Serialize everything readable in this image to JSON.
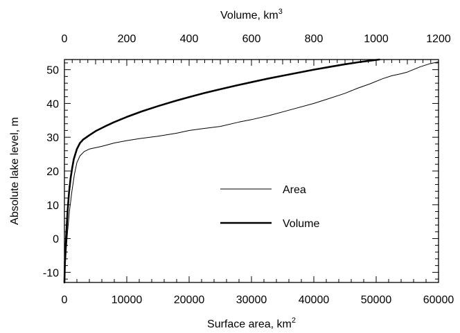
{
  "chart_data": {
    "type": "line",
    "xlabel": "Surface area, km",
    "xlabel_sup": "2",
    "x2label": "Volume, km",
    "x2label_sup": "3",
    "ylabel": "Absolute lake level, m",
    "xlim": [
      0,
      60000
    ],
    "x2lim": [
      0,
      1200
    ],
    "ylim": [
      -13,
      53
    ],
    "xticks": [
      0,
      10000,
      20000,
      30000,
      40000,
      50000,
      60000
    ],
    "xtick_labels": [
      "0",
      "10000",
      "20000",
      "30000",
      "40000",
      "50000",
      "60000"
    ],
    "x2ticks": [
      0,
      200,
      400,
      600,
      800,
      1000,
      1200
    ],
    "x2tick_labels": [
      "0",
      "200",
      "400",
      "600",
      "800",
      "1000",
      "1200"
    ],
    "yticks": [
      -10,
      0,
      10,
      20,
      30,
      40,
      50
    ],
    "ytick_labels": [
      "-10",
      "0",
      "10",
      "20",
      "30",
      "40",
      "50"
    ],
    "grid": false,
    "legend_position": "center",
    "series": [
      {
        "name": "Area",
        "axis": "bottom",
        "line_weight": "thin",
        "color": "#000000",
        "points": [
          [
            0,
            -13
          ],
          [
            150,
            -8
          ],
          [
            300,
            -3
          ],
          [
            500,
            2
          ],
          [
            800,
            8
          ],
          [
            1200,
            14
          ],
          [
            1600,
            19
          ],
          [
            2000,
            22.5
          ],
          [
            2500,
            24.5
          ],
          [
            3200,
            25.8
          ],
          [
            4000,
            26.5
          ],
          [
            6000,
            27.3
          ],
          [
            8000,
            28.3
          ],
          [
            10000,
            29
          ],
          [
            12000,
            29.6
          ],
          [
            15000,
            30.3
          ],
          [
            18000,
            31.2
          ],
          [
            20000,
            32
          ],
          [
            22000,
            32.5
          ],
          [
            25000,
            33.2
          ],
          [
            28000,
            34.5
          ],
          [
            30000,
            35.2
          ],
          [
            33000,
            36.5
          ],
          [
            36000,
            38
          ],
          [
            40000,
            40
          ],
          [
            42000,
            41.2
          ],
          [
            45000,
            43
          ],
          [
            47000,
            44.5
          ],
          [
            49000,
            45.8
          ],
          [
            51000,
            47.3
          ],
          [
            52500,
            48.2
          ],
          [
            54000,
            48.8
          ],
          [
            55000,
            49.3
          ],
          [
            57000,
            50.8
          ],
          [
            58500,
            51.7
          ],
          [
            60000,
            52.3
          ]
        ]
      },
      {
        "name": "Volume",
        "axis": "top",
        "line_weight": "thick",
        "color": "#000000",
        "points": [
          [
            0,
            -13
          ],
          [
            2,
            -5
          ],
          [
            5,
            0
          ],
          [
            10,
            8
          ],
          [
            15,
            14
          ],
          [
            20,
            18
          ],
          [
            25,
            21
          ],
          [
            30,
            23.5
          ],
          [
            40,
            26.5
          ],
          [
            50,
            28.3
          ],
          [
            60,
            29.3
          ],
          [
            80,
            30.6
          ],
          [
            100,
            31.8
          ],
          [
            130,
            33.2
          ],
          [
            160,
            34.5
          ],
          [
            200,
            36
          ],
          [
            250,
            37.7
          ],
          [
            300,
            39.2
          ],
          [
            350,
            40.6
          ],
          [
            400,
            41.9
          ],
          [
            450,
            43.1
          ],
          [
            500,
            44.2
          ],
          [
            550,
            45.3
          ],
          [
            600,
            46.3
          ],
          [
            650,
            47.3
          ],
          [
            700,
            48.2
          ],
          [
            750,
            49.1
          ],
          [
            800,
            50
          ],
          [
            850,
            50.8
          ],
          [
            900,
            51.6
          ],
          [
            950,
            52.3
          ],
          [
            1010,
            53
          ]
        ]
      }
    ]
  }
}
